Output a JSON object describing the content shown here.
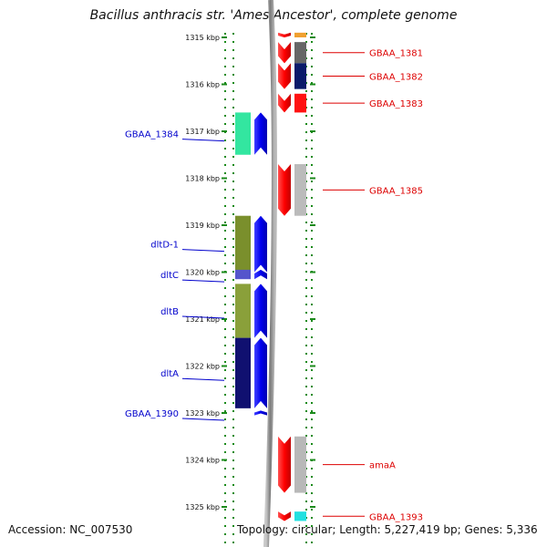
{
  "title": "Bacillus anthracis str. 'Ames Ancestor', complete genome",
  "footer": {
    "accession": "Accession: NC_007530",
    "topology": "Topology: circular; Length: 5,227,419 bp; Genes: 5,336"
  },
  "axis": {
    "unit": "kbp",
    "ticks": [
      1315,
      1316,
      1317,
      1318,
      1319,
      1320,
      1321,
      1322,
      1323,
      1324,
      1325
    ]
  },
  "colors": {
    "plus_label": "#0000cc",
    "minus_label": "#dd0000",
    "tick_green": "#1a8a1a",
    "backbone": "#8a8a8a"
  },
  "genes": [
    {
      "strand": "-",
      "start": 1314.9,
      "end": 1315.0,
      "color": "#f0a030",
      "label": ""
    },
    {
      "strand": "-",
      "start": 1314.9,
      "end": 1315.0,
      "color": "#ffffff",
      "label": ""
    },
    {
      "strand": "+",
      "start": 1316.6,
      "end": 1317.5,
      "color": "#33e6a0",
      "label": "GBAA_1384"
    },
    {
      "strand": "+",
      "start": 1318.8,
      "end": 1320.0,
      "color": "#7a8f2c",
      "label": "dltD-1"
    },
    {
      "strand": "+",
      "start": 1319.95,
      "end": 1320.15,
      "color": "#5555cc",
      "label": "dltC"
    },
    {
      "strand": "+",
      "start": 1320.25,
      "end": 1321.4,
      "color": "#8aa03a",
      "label": "dltB"
    },
    {
      "strand": "+",
      "start": 1321.4,
      "end": 1322.9,
      "color": "#101070",
      "label": "dltA"
    },
    {
      "strand": "+",
      "start": 1322.95,
      "end": 1323.05,
      "color": "#ffffff",
      "label": "GBAA_1390"
    },
    {
      "strand": "-",
      "start": 1315.1,
      "end": 1315.55,
      "color": "#666666",
      "label": "GBAA_1381"
    },
    {
      "strand": "-",
      "start": 1315.55,
      "end": 1316.1,
      "color": "#0a1a6a",
      "label": "GBAA_1382"
    },
    {
      "strand": "-",
      "start": 1316.2,
      "end": 1316.6,
      "color": "#ff1010",
      "label": "GBAA_1383"
    },
    {
      "strand": "-",
      "start": 1317.7,
      "end": 1318.8,
      "color": "#bbbbbb",
      "label": "GBAA_1385"
    },
    {
      "strand": "-",
      "start": 1323.5,
      "end": 1324.7,
      "color": "#b8b8b8",
      "label": "amaA"
    },
    {
      "strand": "-",
      "start": 1325.1,
      "end": 1325.3,
      "color": "#22e0e0",
      "label": "GBAA_1393"
    }
  ],
  "legend": []
}
